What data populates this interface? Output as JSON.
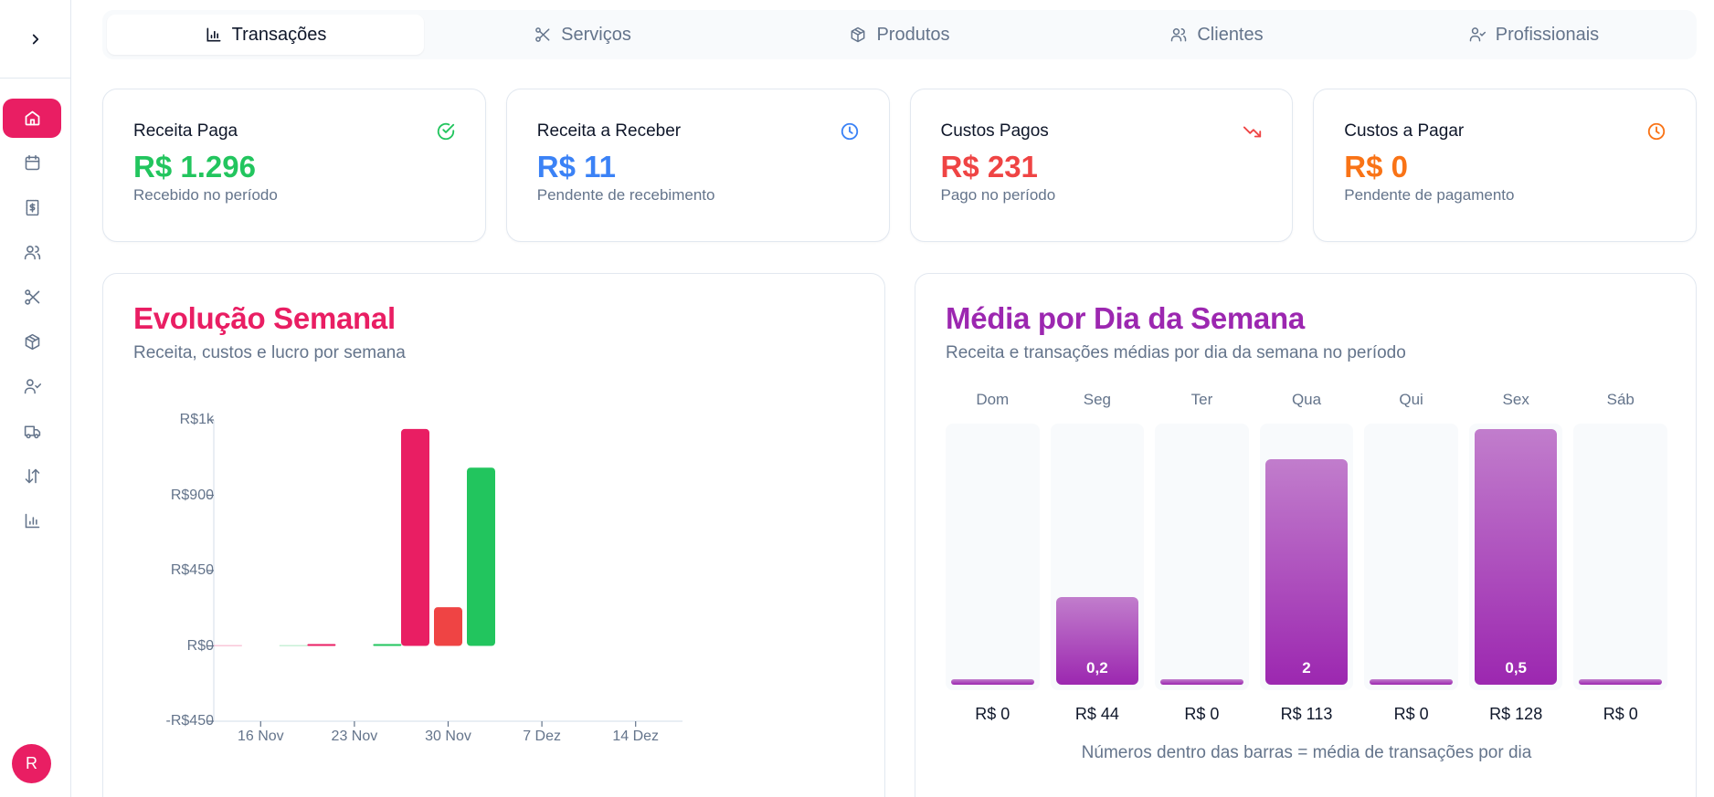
{
  "sidebar": {
    "toggle_icon": "chevron-right-icon",
    "items": [
      {
        "name": "home",
        "icon": "home-icon",
        "active": true
      },
      {
        "name": "calendar",
        "icon": "calendar-icon",
        "active": false
      },
      {
        "name": "finance",
        "icon": "receipt-dollar-icon",
        "active": false
      },
      {
        "name": "clients",
        "icon": "users-icon",
        "active": false
      },
      {
        "name": "services",
        "icon": "scissors-icon",
        "active": false
      },
      {
        "name": "products",
        "icon": "package-icon",
        "active": false
      },
      {
        "name": "professionals",
        "icon": "user-check-icon",
        "active": false
      },
      {
        "name": "suppliers",
        "icon": "truck-icon",
        "active": false
      },
      {
        "name": "transactions",
        "icon": "arrow-up-down-icon",
        "active": false
      },
      {
        "name": "reports",
        "icon": "bar-chart-icon",
        "active": false
      }
    ],
    "avatar_initial": "R"
  },
  "tabs": [
    {
      "label": "Transações",
      "icon": "bar-chart-icon",
      "active": true
    },
    {
      "label": "Serviços",
      "icon": "scissors-icon",
      "active": false
    },
    {
      "label": "Produtos",
      "icon": "package-icon",
      "active": false
    },
    {
      "label": "Clientes",
      "icon": "users-icon",
      "active": false
    },
    {
      "label": "Profissionais",
      "icon": "user-check-icon",
      "active": false
    }
  ],
  "kpis": [
    {
      "title": "Receita Paga",
      "value": "R$ 1.296",
      "subtitle": "Recebido no período",
      "icon": "check-circle-icon",
      "color": "#22c55e"
    },
    {
      "title": "Receita a Receber",
      "value": "R$ 11",
      "subtitle": "Pendente de recebimento",
      "icon": "clock-icon",
      "color": "#3b82f6"
    },
    {
      "title": "Custos Pagos",
      "value": "R$ 231",
      "subtitle": "Pago no período",
      "icon": "trending-down-icon",
      "color": "#ef4444"
    },
    {
      "title": "Custos a Pagar",
      "value": "R$ 0",
      "subtitle": "Pendente de pagamento",
      "icon": "clock-icon",
      "color": "#f97316"
    }
  ],
  "weekly": {
    "title": "Evolução Semanal",
    "subtitle": "Receita, custos e lucro por semana",
    "title_color": "#e91e63"
  },
  "weekday": {
    "title": "Média por Dia da Semana",
    "subtitle": "Receita e transações médias por dia da semana no período",
    "title_color": "#9c27b0",
    "note": "Números dentro das barras = média de transações por dia"
  },
  "chart_data": [
    {
      "type": "bar",
      "title": "Evolução Semanal",
      "subtitle": "Receita, custos e lucro por semana",
      "xlabel": "",
      "ylabel": "",
      "y_ticks": [
        "R$1k",
        "R$900",
        "R$450",
        "R$0",
        "-R$450"
      ],
      "y_tick_values": [
        1350,
        900,
        450,
        0,
        -450
      ],
      "ylim": [
        -450,
        1350
      ],
      "x_ticks": [
        "16 Nov",
        "23 Nov",
        "30 Nov",
        "7 Dez",
        "14 Dez"
      ],
      "categories": [
        "16 Nov",
        "23 Nov",
        "30 Nov",
        "7 Dez",
        "14 Dez"
      ],
      "series": [
        {
          "name": "Receita",
          "color": "#e91e63",
          "values": [
            0,
            10,
            1296,
            0,
            0
          ]
        },
        {
          "name": "Custos",
          "color": "#ef4444",
          "values": [
            0,
            0,
            231,
            0,
            0
          ]
        },
        {
          "name": "Lucro",
          "color": "#22c55e",
          "values": [
            0,
            10,
            1065,
            0,
            0
          ]
        }
      ],
      "grid": false,
      "legend": "none"
    },
    {
      "type": "bar",
      "title": "Média por Dia da Semana",
      "subtitle": "Receita e transações médias por dia da semana no período",
      "categories": [
        "Dom",
        "Seg",
        "Ter",
        "Qua",
        "Qui",
        "Sex",
        "Sáb"
      ],
      "series": [
        {
          "name": "Receita média",
          "values": [
            0,
            44,
            0,
            113,
            0,
            128,
            0
          ],
          "labels": [
            "R$ 0",
            "R$ 44",
            "R$ 0",
            "R$ 113",
            "R$ 0",
            "R$ 128",
            "R$ 0"
          ]
        },
        {
          "name": "Transações médias",
          "values": [
            0,
            0.2,
            0,
            2,
            0,
            0.5,
            0
          ],
          "labels": [
            "",
            "0,2",
            "",
            "2",
            "",
            "0,5",
            ""
          ]
        }
      ],
      "annotation": "Números dentro das barras = média de transações por dia"
    }
  ]
}
